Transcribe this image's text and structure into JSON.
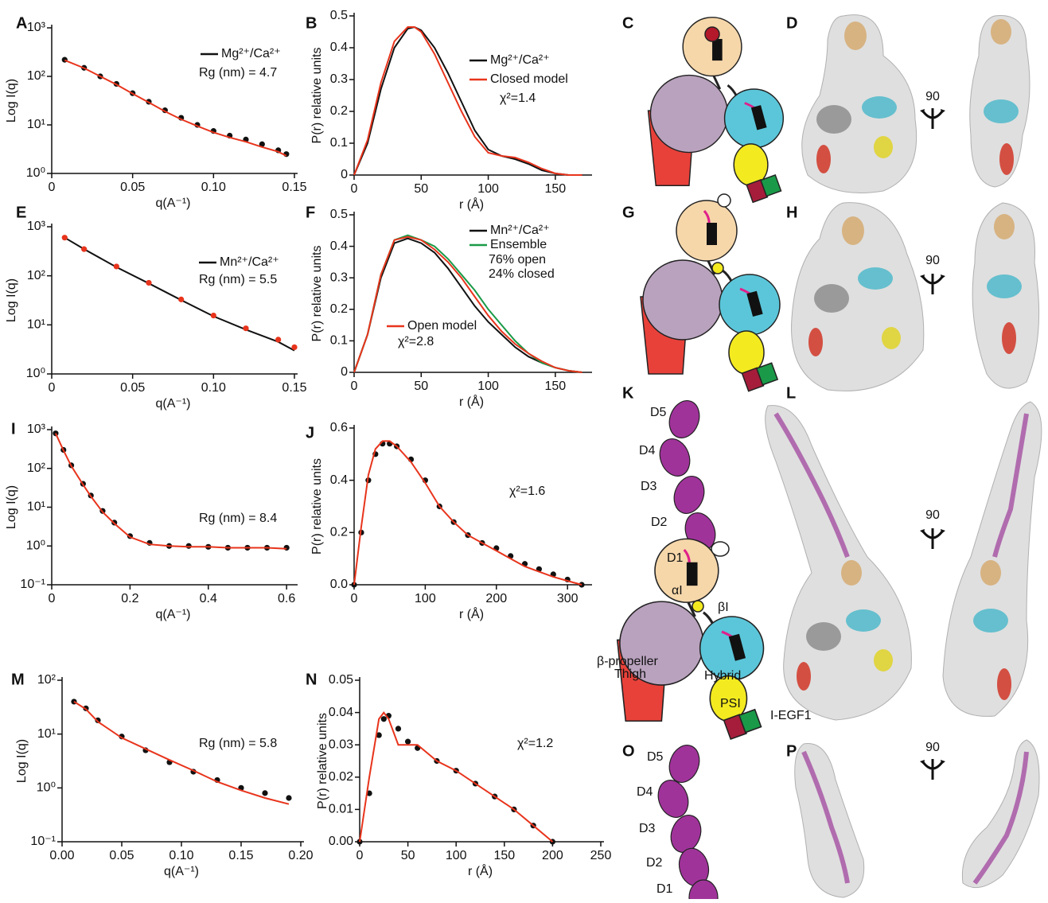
{
  "chart_data": [
    {
      "type": "line",
      "panel": "A",
      "log": true,
      "xlabel": "q(A⁻¹)",
      "ylabel": "Log I(q)",
      "xlim": [
        0,
        0.15
      ],
      "xticks": [
        0,
        0.05,
        {
          "value": 0.1,
          "label": "0.10"
        },
        0.15
      ],
      "ylim": [
        1,
        1000
      ],
      "yticks": [
        {
          "value": 1,
          "label": "10⁰"
        },
        {
          "value": 10,
          "label": "10¹"
        },
        {
          "value": 100,
          "label": "10²"
        },
        {
          "value": 1000,
          "label": "10³"
        }
      ],
      "x": [
        0.008,
        0.02,
        0.03,
        0.04,
        0.05,
        0.06,
        0.07,
        0.08,
        0.09,
        0.1,
        0.11,
        0.12,
        0.13,
        0.14,
        0.145
      ],
      "series": [
        {
          "name": "Mg²⁺/Ca²⁺",
          "color": "#111111",
          "style": "points",
          "values": [
            220,
            150,
            100,
            70,
            45,
            30,
            20,
            14,
            10,
            7.5,
            6,
            5,
            4,
            3,
            2.5
          ]
        },
        {
          "color": "#e8341c",
          "style": "line",
          "values": [
            215,
            148,
            100,
            68,
            44,
            29,
            19,
            13,
            9.5,
            7,
            5.5,
            4.5,
            3.5,
            2.8,
            2.3
          ]
        }
      ],
      "annotations": [
        "Rg (nm) = 4.7"
      ]
    },
    {
      "type": "line",
      "panel": "B",
      "log": false,
      "xlabel": "r (Å)",
      "ylabel": "P(r) relative units",
      "xlim": [
        0,
        175
      ],
      "xticks": [
        0,
        50,
        100,
        150
      ],
      "ylim": [
        0,
        0.5
      ],
      "yticks": [
        0,
        0.1,
        0.2,
        0.3,
        0.4,
        0.5
      ],
      "x": [
        0,
        10,
        20,
        30,
        40,
        45,
        50,
        60,
        70,
        80,
        90,
        100,
        110,
        120,
        130,
        140,
        150,
        160,
        170
      ],
      "series": [
        {
          "name": "Mg²⁺/Ca²⁺",
          "color": "#111111",
          "style": "line",
          "values": [
            0,
            0.1,
            0.27,
            0.4,
            0.46,
            0.465,
            0.455,
            0.4,
            0.32,
            0.23,
            0.14,
            0.08,
            0.06,
            0.05,
            0.035,
            0.015,
            0.005,
            0,
            0
          ]
        },
        {
          "name": "Closed model",
          "color": "#e8341c",
          "style": "line",
          "values": [
            0,
            0.11,
            0.29,
            0.42,
            0.465,
            0.465,
            0.45,
            0.38,
            0.29,
            0.2,
            0.12,
            0.07,
            0.06,
            0.055,
            0.04,
            0.02,
            0.005,
            0,
            0
          ]
        }
      ],
      "annotations": [
        "χ²=1.4"
      ]
    },
    {
      "type": "line",
      "panel": "E",
      "log": true,
      "xlabel": "q(A⁻¹)",
      "ylabel": "Log I(q)",
      "xlim": [
        0,
        0.15
      ],
      "xticks": [
        0,
        0.05,
        {
          "value": 0.1,
          "label": "0.10"
        },
        0.15
      ],
      "ylim": [
        1,
        1000
      ],
      "yticks": [
        {
          "value": 1,
          "label": "10⁰"
        },
        {
          "value": 10,
          "label": "10¹"
        },
        {
          "value": 100,
          "label": "10²"
        },
        {
          "value": 1000,
          "label": "10³"
        }
      ],
      "x": [
        0.008,
        0.02,
        0.04,
        0.06,
        0.08,
        0.1,
        0.12,
        0.14,
        0.15
      ],
      "series": [
        {
          "name": "Mn²⁺/Ca²⁺",
          "color": "#111111",
          "style": "line",
          "values": [
            600,
            350,
            150,
            70,
            32,
            15,
            8,
            4.5,
            3
          ]
        },
        {
          "color": "#e8341c",
          "style": "points",
          "values": [
            600,
            350,
            155,
            72,
            33,
            15.5,
            8.5,
            5,
            3.5
          ]
        }
      ],
      "annotations": [
        "Rg (nm) = 5.5"
      ]
    },
    {
      "type": "line",
      "panel": "F",
      "log": false,
      "xlabel": "r (Å)",
      "ylabel": "P(r) relative units",
      "xlim": [
        0,
        175
      ],
      "xticks": [
        0,
        50,
        100,
        150
      ],
      "ylim": [
        0,
        0.5
      ],
      "yticks": [
        0,
        0.1,
        0.2,
        0.3,
        0.4,
        0.5
      ],
      "x": [
        0,
        10,
        20,
        30,
        40,
        50,
        60,
        70,
        80,
        90,
        100,
        110,
        120,
        130,
        140,
        150,
        160,
        170
      ],
      "series": [
        {
          "name": "Mn²⁺/Ca²⁺",
          "color": "#111111",
          "style": "line",
          "values": [
            0,
            0.12,
            0.3,
            0.41,
            0.425,
            0.41,
            0.38,
            0.33,
            0.27,
            0.21,
            0.16,
            0.12,
            0.08,
            0.05,
            0.03,
            0.015,
            0.005,
            0
          ]
        },
        {
          "name": "Ensemble",
          "color": "#1a9a48",
          "style": "line",
          "values": [
            0,
            0.12,
            0.31,
            0.42,
            0.435,
            0.42,
            0.4,
            0.36,
            0.31,
            0.26,
            0.2,
            0.15,
            0.1,
            0.06,
            0.03,
            0.015,
            0.005,
            0
          ]
        },
        {
          "name": "Open model",
          "color": "#e8341c",
          "style": "line",
          "values": [
            0,
            0.12,
            0.31,
            0.42,
            0.43,
            0.42,
            0.39,
            0.35,
            0.3,
            0.24,
            0.18,
            0.13,
            0.09,
            0.06,
            0.035,
            0.015,
            0.005,
            0
          ]
        }
      ],
      "annotations": [
        "76% open",
        "24% closed",
        "χ²=2.8"
      ]
    },
    {
      "type": "line",
      "panel": "I",
      "log": true,
      "xlabel": "q(A⁻¹)",
      "ylabel": "Log I(q)",
      "xlim": [
        0,
        0.62
      ],
      "xticks": [
        0,
        0.2,
        0.4,
        0.6
      ],
      "ylim": [
        0.1,
        1000
      ],
      "yticks": [
        {
          "value": 0.1,
          "label": "10⁻¹"
        },
        {
          "value": 1,
          "label": "10⁰"
        },
        {
          "value": 10,
          "label": "10¹"
        },
        {
          "value": 100,
          "label": "10²"
        },
        {
          "value": 1000,
          "label": "10³"
        }
      ],
      "x": [
        0.01,
        0.03,
        0.05,
        0.08,
        0.1,
        0.13,
        0.16,
        0.2,
        0.25,
        0.3,
        0.35,
        0.4,
        0.45,
        0.5,
        0.55,
        0.6
      ],
      "series": [
        {
          "color": "#111111",
          "style": "points",
          "values": [
            800,
            300,
            120,
            40,
            20,
            8,
            4,
            1.8,
            1.2,
            1,
            1,
            0.95,
            0.9,
            0.9,
            0.9,
            0.9
          ]
        },
        {
          "color": "#e8341c",
          "style": "line",
          "values": [
            800,
            290,
            115,
            38,
            19,
            7.5,
            3.8,
            1.7,
            1.1,
            1,
            0.95,
            0.95,
            0.9,
            0.9,
            0.9,
            0.85
          ]
        }
      ],
      "annotations": [
        "Rg (nm) = 8.4"
      ]
    },
    {
      "type": "line",
      "panel": "J",
      "log": false,
      "xlabel": "r (Å)",
      "ylabel": "P(r) relative units",
      "xlim": [
        0,
        330
      ],
      "xticks": [
        0,
        100,
        200,
        300
      ],
      "ylim": [
        0,
        0.6
      ],
      "yticks": [
        {
          "value": 0,
          "label": "0.0"
        },
        0.2,
        0.4,
        0.6
      ],
      "x": [
        0,
        10,
        20,
        30,
        40,
        50,
        60,
        80,
        100,
        120,
        140,
        160,
        180,
        200,
        220,
        240,
        260,
        280,
        300,
        320
      ],
      "series": [
        {
          "color": "#111111",
          "style": "points",
          "values": [
            0,
            0.2,
            0.4,
            0.5,
            0.54,
            0.54,
            0.53,
            0.48,
            0.4,
            0.3,
            0.24,
            0.19,
            0.16,
            0.14,
            0.11,
            0.08,
            0.06,
            0.04,
            0.02,
            0
          ]
        },
        {
          "color": "#e8341c",
          "style": "line",
          "values": [
            0,
            0.22,
            0.42,
            0.52,
            0.55,
            0.55,
            0.53,
            0.47,
            0.39,
            0.3,
            0.24,
            0.19,
            0.16,
            0.13,
            0.1,
            0.07,
            0.05,
            0.03,
            0.015,
            0
          ]
        }
      ],
      "annotations": [
        "χ²=1.6"
      ]
    },
    {
      "type": "line",
      "panel": "M",
      "log": true,
      "xlabel": "q(A⁻¹)",
      "ylabel": "Log I(q)",
      "xlim": [
        0,
        0.2
      ],
      "xticks": [
        {
          "value": 0,
          "label": "0.00"
        },
        0.05,
        {
          "value": 0.1,
          "label": "0.10"
        },
        0.15,
        {
          "value": 0.2,
          "label": "0.20"
        }
      ],
      "ylim": [
        0.1,
        100
      ],
      "yticks": [
        {
          "value": 0.1,
          "label": "10⁻¹"
        },
        {
          "value": 1,
          "label": "10⁰"
        },
        {
          "value": 10,
          "label": "10¹"
        },
        {
          "value": 100,
          "label": "10²"
        }
      ],
      "x": [
        0.01,
        0.02,
        0.03,
        0.05,
        0.07,
        0.09,
        0.11,
        0.13,
        0.15,
        0.17,
        0.19
      ],
      "series": [
        {
          "color": "#111111",
          "style": "points",
          "values": [
            40,
            30,
            18,
            9,
            5,
            3,
            2,
            1.4,
            1,
            0.8,
            0.65
          ]
        },
        {
          "color": "#e8341c",
          "style": "line",
          "values": [
            40,
            29,
            17,
            8.5,
            5.3,
            3.3,
            2.1,
            1.3,
            0.9,
            0.65,
            0.5
          ]
        }
      ],
      "annotations": [
        "Rg (nm) = 5.8"
      ]
    },
    {
      "type": "line",
      "panel": "N",
      "log": false,
      "xlabel": "r (Å)",
      "ylabel": "P(r) relative units",
      "xlim": [
        0,
        250
      ],
      "xticks": [
        0,
        50,
        100,
        150,
        200,
        250
      ],
      "ylim": [
        0,
        0.05
      ],
      "yticks": [
        {
          "value": 0,
          "label": "0.00"
        },
        0.01,
        0.02,
        0.03,
        0.04,
        0.05
      ],
      "x": [
        0,
        10,
        20,
        25,
        30,
        40,
        50,
        60,
        80,
        100,
        120,
        140,
        160,
        180,
        200
      ],
      "series": [
        {
          "color": "#111111",
          "style": "points",
          "values": [
            0,
            0.015,
            0.033,
            0.038,
            0.039,
            0.035,
            0.031,
            0.029,
            0.025,
            0.022,
            0.018,
            0.014,
            0.01,
            0.005,
            0
          ]
        },
        {
          "color": "#e8341c",
          "style": "line",
          "values": [
            0,
            0.02,
            0.038,
            0.04,
            0.038,
            0.03,
            0.03,
            0.03,
            0.025,
            0.022,
            0.018,
            0.014,
            0.01,
            0.005,
            0
          ]
        }
      ],
      "annotations": [
        "χ²=1.2"
      ]
    }
  ],
  "diagrams": [
    {
      "panel": "C"
    },
    {
      "panel": "G"
    },
    {
      "panel": "K",
      "labels": [
        "D5",
        "D4",
        "D3",
        "D2",
        "D1",
        "αI",
        "βI",
        "β-propeller",
        "Thigh",
        "Hybrid",
        "PSI",
        "I-EGF1"
      ]
    },
    {
      "panel": "O",
      "labels": [
        "D5",
        "D4",
        "D3",
        "D2",
        "D1"
      ]
    }
  ],
  "structures": [
    {
      "panel": "D",
      "rotation": "90"
    },
    {
      "panel": "H",
      "rotation": "90"
    },
    {
      "panel": "L",
      "rotation": "90"
    },
    {
      "panel": "P",
      "rotation": "90"
    }
  ]
}
